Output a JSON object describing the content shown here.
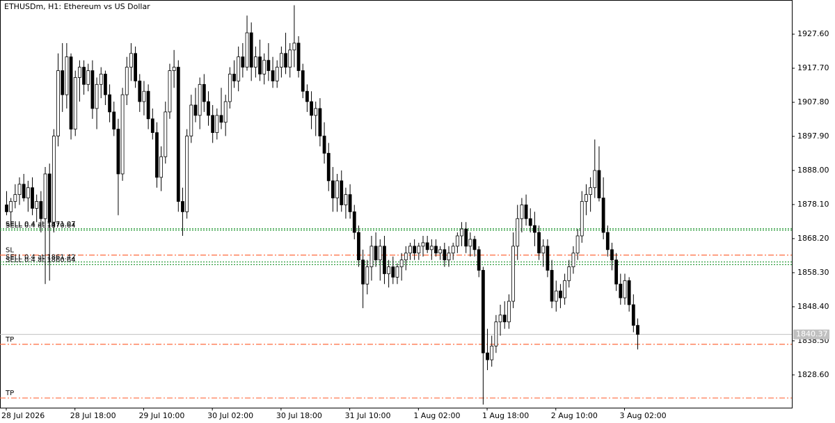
{
  "chart_data": {
    "type": "candlestick",
    "title": "ETHUSDm, H1:  Ethereum vs US Dollar",
    "ohlc": [
      [
        1878,
        1882,
        1875,
        1876
      ],
      [
        1876,
        1880,
        1872,
        1879
      ],
      [
        1879,
        1884,
        1877,
        1881
      ],
      [
        1881,
        1886,
        1878,
        1884
      ],
      [
        1884,
        1887,
        1879,
        1880
      ],
      [
        1880,
        1885,
        1876,
        1883
      ],
      [
        1883,
        1886,
        1875,
        1877
      ],
      [
        1877,
        1881,
        1873,
        1879
      ],
      [
        1879,
        1882,
        1870,
        1874
      ],
      [
        1874,
        1889,
        1855,
        1887
      ],
      [
        1887,
        1890,
        1856,
        1873
      ],
      [
        1873,
        1900,
        1870,
        1898
      ],
      [
        1898,
        1922,
        1895,
        1917
      ],
      [
        1917,
        1925,
        1905,
        1910
      ],
      [
        1910,
        1925,
        1906,
        1921
      ],
      [
        1921,
        1922,
        1897,
        1900
      ],
      [
        1900,
        1917,
        1898,
        1915
      ],
      [
        1915,
        1920,
        1908,
        1918
      ],
      [
        1918,
        1920,
        1910,
        1913
      ],
      [
        1913,
        1919,
        1911,
        1917
      ],
      [
        1917,
        1920,
        1903,
        1906
      ],
      [
        1906,
        1915,
        1900,
        1913
      ],
      [
        1913,
        1918,
        1909,
        1916
      ],
      [
        1916,
        1917,
        1907,
        1910
      ],
      [
        1910,
        1913,
        1902,
        1905
      ],
      [
        1905,
        1908,
        1898,
        1900
      ],
      [
        1900,
        1903,
        1875,
        1887
      ],
      [
        1887,
        1912,
        1885,
        1910
      ],
      [
        1910,
        1921,
        1907,
        1918
      ],
      [
        1918,
        1925,
        1914,
        1922
      ],
      [
        1922,
        1924,
        1912,
        1914
      ],
      [
        1914,
        1916,
        1905,
        1908
      ],
      [
        1908,
        1914,
        1904,
        1911
      ],
      [
        1911,
        1913,
        1900,
        1903
      ],
      [
        1903,
        1906,
        1897,
        1899
      ],
      [
        1899,
        1902,
        1883,
        1886
      ],
      [
        1886,
        1895,
        1882,
        1892
      ],
      [
        1892,
        1908,
        1890,
        1905
      ],
      [
        1905,
        1919,
        1903,
        1917
      ],
      [
        1917,
        1923,
        1912,
        1918
      ],
      [
        1918,
        1920,
        1876,
        1879
      ],
      [
        1879,
        1883,
        1869,
        1876
      ],
      [
        1876,
        1900,
        1874,
        1898
      ],
      [
        1898,
        1910,
        1896,
        1907
      ],
      [
        1907,
        1912,
        1902,
        1904
      ],
      [
        1904,
        1915,
        1900,
        1913
      ],
      [
        1913,
        1916,
        1905,
        1908
      ],
      [
        1908,
        1911,
        1901,
        1904
      ],
      [
        1904,
        1907,
        1896,
        1899
      ],
      [
        1899,
        1906,
        1897,
        1904
      ],
      [
        1904,
        1912,
        1900,
        1902
      ],
      [
        1902,
        1910,
        1898,
        1908
      ],
      [
        1908,
        1918,
        1906,
        1916
      ],
      [
        1916,
        1920,
        1912,
        1914
      ],
      [
        1914,
        1924,
        1911,
        1921
      ],
      [
        1921,
        1925,
        1915,
        1918
      ],
      [
        1918,
        1933,
        1917,
        1928
      ],
      [
        1928,
        1931,
        1914,
        1918
      ],
      [
        1918,
        1924,
        1915,
        1921
      ],
      [
        1921,
        1926,
        1914,
        1916
      ],
      [
        1916,
        1922,
        1913,
        1920
      ],
      [
        1920,
        1925,
        1914,
        1917
      ],
      [
        1917,
        1921,
        1912,
        1914
      ],
      [
        1914,
        1920,
        1912,
        1918
      ],
      [
        1918,
        1924,
        1915,
        1922
      ],
      [
        1922,
        1928,
        1916,
        1918
      ],
      [
        1918,
        1925,
        1915,
        1923
      ],
      [
        1923,
        1936,
        1918,
        1925
      ],
      [
        1925,
        1927,
        1915,
        1917
      ],
      [
        1917,
        1919,
        1909,
        1911
      ],
      [
        1911,
        1913,
        1905,
        1908
      ],
      [
        1908,
        1911,
        1900,
        1904
      ],
      [
        1904,
        1908,
        1898,
        1906
      ],
      [
        1906,
        1909,
        1895,
        1898
      ],
      [
        1898,
        1902,
        1890,
        1893
      ],
      [
        1893,
        1896,
        1882,
        1885
      ],
      [
        1885,
        1889,
        1876,
        1880
      ],
      [
        1880,
        1887,
        1876,
        1885
      ],
      [
        1885,
        1888,
        1876,
        1878
      ],
      [
        1878,
        1883,
        1874,
        1881
      ],
      [
        1881,
        1884,
        1874,
        1876
      ],
      [
        1876,
        1878,
        1868,
        1870
      ],
      [
        1870,
        1872,
        1860,
        1862
      ],
      [
        1862,
        1865,
        1848,
        1855
      ],
      [
        1855,
        1862,
        1852,
        1860
      ],
      [
        1860,
        1869,
        1856,
        1866
      ],
      [
        1866,
        1870,
        1860,
        1862
      ],
      [
        1862,
        1868,
        1856,
        1866
      ],
      [
        1866,
        1869,
        1855,
        1858
      ],
      [
        1858,
        1862,
        1854,
        1860
      ],
      [
        1860,
        1863,
        1855,
        1857
      ],
      [
        1857,
        1861,
        1855,
        1860
      ],
      [
        1860,
        1864,
        1856,
        1862
      ],
      [
        1862,
        1866,
        1859,
        1864
      ],
      [
        1864,
        1867,
        1862,
        1866
      ],
      [
        1866,
        1868,
        1862,
        1864
      ],
      [
        1864,
        1867,
        1862,
        1866
      ],
      [
        1866,
        1869,
        1863,
        1867
      ],
      [
        1867,
        1869,
        1864,
        1865
      ],
      [
        1865,
        1868,
        1862,
        1866
      ],
      [
        1866,
        1868,
        1863,
        1864
      ],
      [
        1864,
        1866,
        1862,
        1865
      ],
      [
        1865,
        1867,
        1860,
        1862
      ],
      [
        1862,
        1866,
        1860,
        1864
      ],
      [
        1864,
        1867,
        1862,
        1866
      ],
      [
        1866,
        1870,
        1864,
        1869
      ],
      [
        1869,
        1873,
        1866,
        1871
      ],
      [
        1871,
        1873,
        1864,
        1866
      ],
      [
        1866,
        1870,
        1863,
        1868
      ],
      [
        1868,
        1869,
        1863,
        1865
      ],
      [
        1865,
        1866,
        1857,
        1859
      ],
      [
        1859,
        1860,
        1820,
        1835
      ],
      [
        1835,
        1842,
        1830,
        1833
      ],
      [
        1833,
        1840,
        1831,
        1837
      ],
      [
        1837,
        1846,
        1835,
        1844
      ],
      [
        1844,
        1849,
        1840,
        1846
      ],
      [
        1846,
        1850,
        1842,
        1844
      ],
      [
        1844,
        1852,
        1842,
        1850
      ],
      [
        1850,
        1870,
        1848,
        1866
      ],
      [
        1866,
        1878,
        1862,
        1874
      ],
      [
        1874,
        1880,
        1870,
        1878
      ],
      [
        1878,
        1881,
        1872,
        1874
      ],
      [
        1874,
        1877,
        1870,
        1872
      ],
      [
        1872,
        1876,
        1866,
        1870
      ],
      [
        1870,
        1872,
        1862,
        1864
      ],
      [
        1864,
        1868,
        1860,
        1866
      ],
      [
        1866,
        1868,
        1857,
        1859
      ],
      [
        1859,
        1862,
        1848,
        1850
      ],
      [
        1850,
        1856,
        1847,
        1853
      ],
      [
        1853,
        1855,
        1848,
        1851
      ],
      [
        1851,
        1858,
        1849,
        1856
      ],
      [
        1856,
        1862,
        1854,
        1860
      ],
      [
        1860,
        1866,
        1858,
        1864
      ],
      [
        1864,
        1871,
        1862,
        1869
      ],
      [
        1869,
        1882,
        1867,
        1879
      ],
      [
        1879,
        1884,
        1875,
        1881
      ],
      [
        1881,
        1886,
        1876,
        1883
      ],
      [
        1883,
        1897,
        1880,
        1888
      ],
      [
        1888,
        1895,
        1879,
        1880
      ],
      [
        1880,
        1886,
        1868,
        1870
      ],
      [
        1870,
        1872,
        1863,
        1865
      ],
      [
        1865,
        1867,
        1859,
        1862
      ],
      [
        1862,
        1864,
        1853,
        1855
      ],
      [
        1855,
        1858,
        1849,
        1851
      ],
      [
        1851,
        1858,
        1849,
        1856
      ],
      [
        1856,
        1857,
        1847,
        1849
      ],
      [
        1849,
        1852,
        1841,
        1843
      ],
      [
        1843,
        1845,
        1836,
        1840.37
      ]
    ],
    "xticks": [
      {
        "value": 0,
        "label": "28 Jul 2026"
      },
      {
        "value": 16,
        "label": "28 Jul 18:00"
      },
      {
        "value": 32,
        "label": "29 Jul 10:00"
      },
      {
        "value": 48,
        "label": "30 Jul 02:00"
      },
      {
        "value": 64,
        "label": "30 Jul 18:00"
      },
      {
        "value": 80,
        "label": "31 Jul 10:00"
      },
      {
        "value": 96,
        "label": "1 Aug 02:00"
      },
      {
        "value": 112,
        "label": "1 Aug 18:00"
      },
      {
        "value": 128,
        "label": "2 Aug 10:00"
      },
      {
        "value": 144,
        "label": "3 Aug 02:00"
      }
    ],
    "ylim": [
      1819.08,
      1937.52
    ],
    "yticks": [
      {
        "value": 1828.6,
        "label": "1828.60"
      },
      {
        "value": 1838.5,
        "label": "1838.50"
      },
      {
        "value": 1848.4,
        "label": "1848.40"
      },
      {
        "value": 1858.3,
        "label": "1858.30"
      },
      {
        "value": 1868.2,
        "label": "1868.20"
      },
      {
        "value": 1878.1,
        "label": "1878.10"
      },
      {
        "value": 1888,
        "label": "1888.00"
      },
      {
        "value": 1897.9,
        "label": "1897.90"
      },
      {
        "value": 1907.8,
        "label": "1907.80"
      },
      {
        "value": 1917.7,
        "label": "1917.70"
      },
      {
        "value": 1927.6,
        "label": "1927.60"
      }
    ],
    "up_color": "#ffffff",
    "down_color": "#000000",
    "current_price": 1840.37,
    "levels": [
      {
        "label": "SELL 0.4 at 1871.07",
        "value": 1871.07,
        "style": "order"
      },
      {
        "label": "SELL 0.4 at 1870.64",
        "value": 1870.64,
        "style": "order"
      },
      {
        "label": "SL",
        "value": 1863.42,
        "style": "stop"
      },
      {
        "label": "SELL 0.4 at 1861.42",
        "value": 1861.42,
        "style": "order"
      },
      {
        "label": "SELL 0.4 at 1860.64",
        "value": 1860.64,
        "style": "order"
      },
      {
        "label": "TP",
        "value": 1837.5,
        "style": "stop"
      },
      {
        "label": "TP",
        "value": 1821.9,
        "style": "stop"
      }
    ]
  }
}
